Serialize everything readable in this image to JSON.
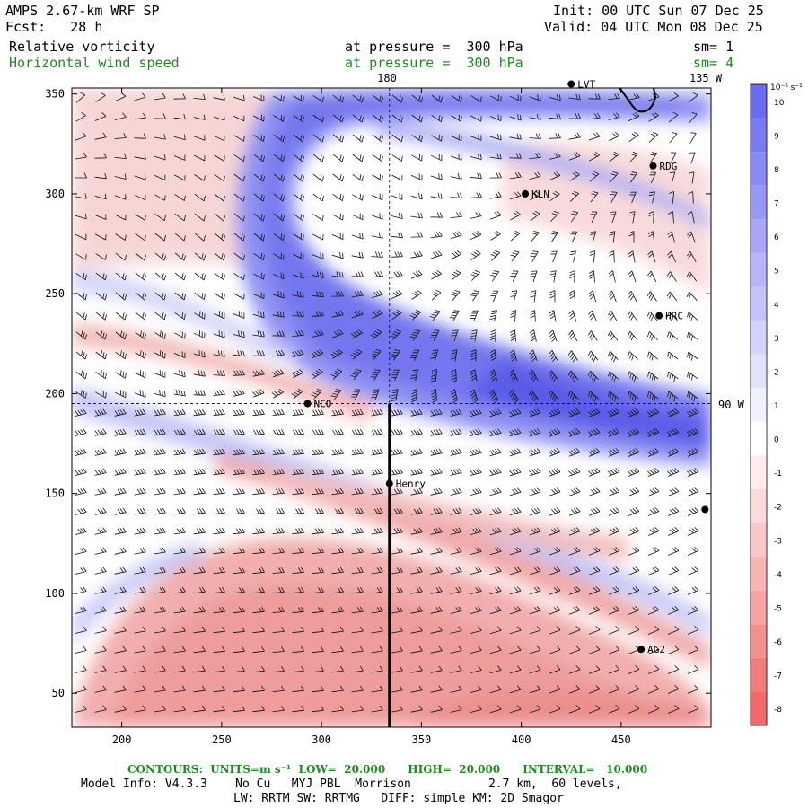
{
  "header": {
    "model_title": "AMPS 2.67-km WRF SP",
    "forecast": "Fcst:   28 h",
    "init": "Init: 00 UTC Sun 07 Dec 25",
    "valid": "Valid: 04 UTC Mon 08 Dec 25",
    "field1_name": "Relative vorticity",
    "field1_level": "at pressure =  300 hPa",
    "field1_smooth": "sm= 1",
    "field2_name": "Horizontal wind speed",
    "field2_level": "at pressure =  300 hPa",
    "field2_smooth": "sm= 4"
  },
  "map": {
    "lon_label_180": "180",
    "lon_label_135w": "135 W",
    "lon_label_90w": "90 W",
    "x_ticks": [
      "200",
      "250",
      "300",
      "350",
      "400",
      "450"
    ],
    "y_ticks": [
      "50",
      "100",
      "150",
      "200",
      "250",
      "300",
      "350"
    ],
    "stations": [
      {
        "id": "LVT",
        "label": "LVT",
        "x": 425,
        "y": 355
      },
      {
        "id": "RDG",
        "label": "RDG",
        "x": 466,
        "y": 314
      },
      {
        "id": "KLN",
        "label": "KLN",
        "x": 402,
        "y": 300
      },
      {
        "id": "HRC",
        "label": "HRC",
        "x": 469,
        "y": 239
      },
      {
        "id": "NCO",
        "label": "NCO",
        "x": 293,
        "y": 195
      },
      {
        "id": "Henry",
        "label": "Henry",
        "x": 334,
        "y": 155
      },
      {
        "id": "AG2",
        "label": "AG2",
        "x": 460,
        "y": 72
      },
      {
        "id": "edge",
        "label": "",
        "x": 492,
        "y": 142
      }
    ],
    "cross_section_x": 334,
    "cross_section_y_top": 195,
    "dashed_x": 334,
    "dashed_y": 195,
    "colors": {
      "positive": "#6a6cf0",
      "negative": "#f06a6a",
      "neutral": "#ffffff"
    }
  },
  "colorbar": {
    "unit_label": "10⁻⁵ s⁻¹",
    "levels": [
      "10",
      "9",
      "8",
      "7",
      "6",
      "5",
      "4",
      "3",
      "2",
      "1",
      "0",
      "-1",
      "-2",
      "-3",
      "-4",
      "-5",
      "-6",
      "-7",
      "-8"
    ],
    "values": [
      10,
      9,
      8,
      7,
      6,
      5,
      4,
      3,
      2,
      1,
      0,
      -1,
      -2,
      -3,
      -4,
      -5,
      -6,
      -7,
      -8
    ]
  },
  "footer": {
    "contours": "CONTOURS:  UNITS=m s⁻¹  LOW=  20.000      HIGH=  20.000      INTERVAL=   10.000",
    "model_info": "Model Info: V4.3.3    No Cu   MYJ PBL  Morrison           2.7 km,  60 levels,",
    "physics": "LW: RRTM SW: RRTMG   DIFF: simple KM: 2D Smagor"
  }
}
